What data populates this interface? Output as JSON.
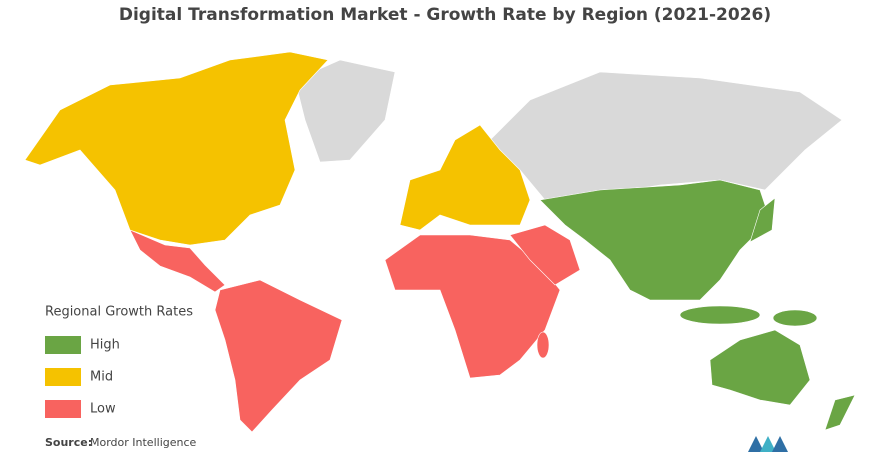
{
  "title": "Digital Transformation Market - Growth Rate by Region (2021-2026)",
  "legend": {
    "title": "Regional Growth Rates",
    "items": [
      {
        "label": "High",
        "color": "#6aa544"
      },
      {
        "label": "Mid",
        "color": "#f5c200"
      },
      {
        "label": "Low",
        "color": "#f8635f"
      }
    ]
  },
  "source": {
    "label": "Source:",
    "text": "Mordor Intelligence"
  }
}
